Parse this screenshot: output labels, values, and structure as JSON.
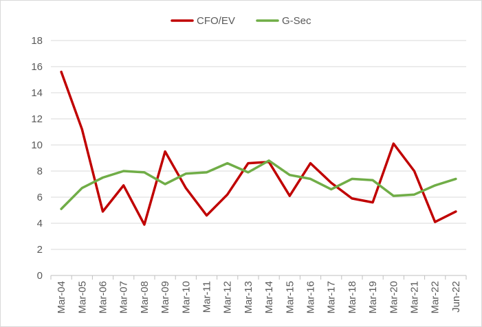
{
  "chart_data": {
    "type": "line",
    "title": "",
    "xlabel": "",
    "ylabel": "",
    "ylim": [
      0,
      18
    ],
    "yticks": [
      0,
      2,
      4,
      6,
      8,
      10,
      12,
      14,
      16,
      18
    ],
    "grid": true,
    "legend_position": "top",
    "categories": [
      "Mar-04",
      "Mar-05",
      "Mar-06",
      "Mar-07",
      "Mar-08",
      "Mar-09",
      "Mar-10",
      "Mar-11",
      "Mar-12",
      "Mar-13",
      "Mar-14",
      "Mar-15",
      "Mar-16",
      "Mar-17",
      "Mar-18",
      "Mar-19",
      "Mar-20",
      "Mar-21",
      "Mar-22",
      "Jun-22"
    ],
    "series": [
      {
        "name": "CFO/EV",
        "color": "#c00000",
        "values": [
          15.6,
          11.2,
          4.9,
          6.9,
          3.9,
          9.5,
          6.7,
          4.6,
          6.2,
          8.6,
          8.7,
          6.1,
          8.6,
          7.1,
          5.9,
          5.6,
          10.1,
          8.0,
          4.1,
          4.9
        ]
      },
      {
        "name": "G-Sec",
        "color": "#70ad47",
        "values": [
          5.1,
          6.7,
          7.5,
          8.0,
          7.9,
          7.0,
          7.8,
          7.9,
          8.6,
          7.9,
          8.8,
          7.7,
          7.4,
          6.6,
          7.4,
          7.3,
          6.1,
          6.2,
          6.9,
          7.4
        ]
      }
    ]
  }
}
